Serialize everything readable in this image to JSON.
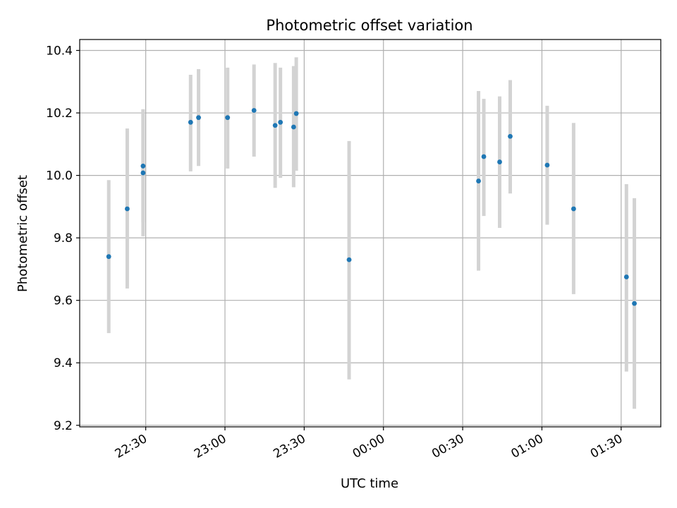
{
  "chart_data": {
    "type": "scatter",
    "title": "Photometric offset variation",
    "xlabel": "UTC time",
    "ylabel": "Photometric offset",
    "x_ticks": [
      "22:30",
      "23:00",
      "23:30",
      "00:00",
      "00:30",
      "01:00",
      "01:30"
    ],
    "x_tick_minutes": [
      0,
      30,
      60,
      90,
      120,
      150,
      180
    ],
    "x_range_minutes": [
      -25,
      195
    ],
    "y_ticks": [
      "9.2",
      "9.4",
      "9.6",
      "9.8",
      "10.0",
      "10.2",
      "10.4"
    ],
    "y_tick_values": [
      9.2,
      9.4,
      9.6,
      9.8,
      10.0,
      10.2,
      10.4
    ],
    "ylim": [
      9.195,
      10.435
    ],
    "grid": true,
    "colors": {
      "marker": "#1f77b4",
      "errorbar": "#d3d3d3",
      "grid": "#b0b0b0"
    },
    "series": [
      {
        "points": [
          {
            "t": "22:16",
            "y": 9.74,
            "lo": 9.495,
            "hi": 9.985
          },
          {
            "t": "22:23",
            "y": 9.893,
            "lo": 9.638,
            "hi": 10.15
          },
          {
            "t": "22:29",
            "y": 10.03,
            "lo": 9.85,
            "hi": 10.21
          },
          {
            "t": "22:29",
            "y": 10.008,
            "lo": 9.805,
            "hi": 10.212
          },
          {
            "t": "22:47",
            "y": 10.17,
            "lo": 10.013,
            "hi": 10.322
          },
          {
            "t": "22:50",
            "y": 10.185,
            "lo": 10.03,
            "hi": 10.34
          },
          {
            "t": "23:01",
            "y": 10.185,
            "lo": 10.022,
            "hi": 10.345
          },
          {
            "t": "23:11",
            "y": 10.208,
            "lo": 10.06,
            "hi": 10.355
          },
          {
            "t": "23:19",
            "y": 10.16,
            "lo": 9.96,
            "hi": 10.36
          },
          {
            "t": "23:21",
            "y": 10.17,
            "lo": 9.992,
            "hi": 10.345
          },
          {
            "t": "23:26",
            "y": 10.155,
            "lo": 9.962,
            "hi": 10.35
          },
          {
            "t": "23:27",
            "y": 10.198,
            "lo": 10.015,
            "hi": 10.378
          },
          {
            "t": "23:47",
            "y": 9.73,
            "lo": 9.347,
            "hi": 10.11
          },
          {
            "t": "00:36",
            "y": 9.982,
            "lo": 9.695,
            "hi": 10.27
          },
          {
            "t": "00:38",
            "y": 10.06,
            "lo": 9.87,
            "hi": 10.245
          },
          {
            "t": "00:44",
            "y": 10.043,
            "lo": 9.832,
            "hi": 10.253
          },
          {
            "t": "00:48",
            "y": 10.125,
            "lo": 9.942,
            "hi": 10.305
          },
          {
            "t": "01:02",
            "y": 10.033,
            "lo": 9.842,
            "hi": 10.223
          },
          {
            "t": "01:12",
            "y": 9.893,
            "lo": 9.62,
            "hi": 10.168
          },
          {
            "t": "01:32",
            "y": 9.675,
            "lo": 9.372,
            "hi": 9.972
          },
          {
            "t": "01:35",
            "y": 9.59,
            "lo": 9.253,
            "hi": 9.927
          }
        ]
      }
    ]
  }
}
